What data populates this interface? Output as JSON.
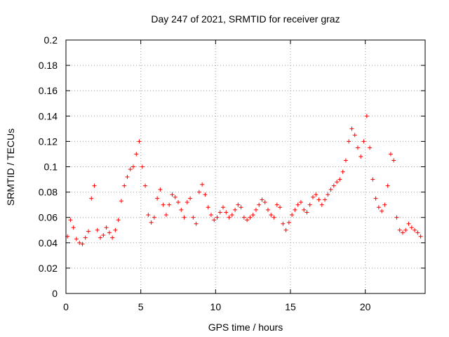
{
  "chart_data": {
    "type": "scatter",
    "title": "Day 247 of 2021, SRMTID for receiver graz",
    "xlabel": "GPS time / hours",
    "ylabel": "SRMTID / TECUs",
    "xlim": [
      0,
      24
    ],
    "ylim": [
      0,
      0.2
    ],
    "xticks": [
      0,
      5,
      10,
      15,
      20
    ],
    "xtick_labels": [
      "0",
      "5",
      "10",
      "15",
      "20"
    ],
    "yticks": [
      0,
      0.02,
      0.04,
      0.06,
      0.08,
      0.1,
      0.12,
      0.14,
      0.16,
      0.18,
      0.2
    ],
    "ytick_labels": [
      "0",
      "0.02",
      "0.04",
      "0.06",
      "0.08",
      "0.1",
      "0.12",
      "0.14",
      "0.16",
      "0.18",
      "0.2"
    ],
    "grid": true,
    "marker": "+",
    "color": "#ff0000",
    "series": [
      {
        "name": "SRMTID",
        "x": [
          0.1,
          0.3,
          0.5,
          0.7,
          0.9,
          1.1,
          1.3,
          1.5,
          1.7,
          1.9,
          2.1,
          2.3,
          2.5,
          2.7,
          2.9,
          3.1,
          3.3,
          3.5,
          3.7,
          3.9,
          4.1,
          4.3,
          4.5,
          4.7,
          4.9,
          5.1,
          5.3,
          5.5,
          5.7,
          5.9,
          6.1,
          6.3,
          6.5,
          6.7,
          6.9,
          7.1,
          7.3,
          7.5,
          7.7,
          7.9,
          8.1,
          8.3,
          8.5,
          8.7,
          8.9,
          9.1,
          9.3,
          9.5,
          9.7,
          9.9,
          10.1,
          10.3,
          10.5,
          10.7,
          10.9,
          11.1,
          11.3,
          11.5,
          11.7,
          11.9,
          12.1,
          12.3,
          12.5,
          12.7,
          12.9,
          13.1,
          13.3,
          13.5,
          13.7,
          13.9,
          14.1,
          14.3,
          14.5,
          14.7,
          14.9,
          15.1,
          15.3,
          15.5,
          15.7,
          15.9,
          16.1,
          16.3,
          16.5,
          16.7,
          16.9,
          17.1,
          17.3,
          17.5,
          17.7,
          17.9,
          18.1,
          18.3,
          18.5,
          18.7,
          18.9,
          19.1,
          19.3,
          19.5,
          19.7,
          19.9,
          20.1,
          20.3,
          20.5,
          20.7,
          20.9,
          21.1,
          21.3,
          21.5,
          21.7,
          21.9,
          22.1,
          22.3,
          22.5,
          22.7,
          22.9,
          23.1,
          23.3,
          23.5,
          23.7
        ],
        "y": [
          0.045,
          0.058,
          0.052,
          0.043,
          0.04,
          0.039,
          0.044,
          0.049,
          0.075,
          0.085,
          0.05,
          0.044,
          0.046,
          0.052,
          0.048,
          0.044,
          0.05,
          0.058,
          0.073,
          0.085,
          0.092,
          0.098,
          0.1,
          0.11,
          0.12,
          0.1,
          0.085,
          0.062,
          0.056,
          0.06,
          0.075,
          0.082,
          0.07,
          0.062,
          0.07,
          0.078,
          0.076,
          0.072,
          0.066,
          0.06,
          0.072,
          0.075,
          0.06,
          0.055,
          0.08,
          0.086,
          0.078,
          0.068,
          0.062,
          0.058,
          0.06,
          0.064,
          0.068,
          0.064,
          0.06,
          0.062,
          0.066,
          0.07,
          0.068,
          0.06,
          0.058,
          0.06,
          0.062,
          0.066,
          0.07,
          0.074,
          0.072,
          0.066,
          0.062,
          0.06,
          0.07,
          0.068,
          0.055,
          0.05,
          0.056,
          0.062,
          0.066,
          0.07,
          0.072,
          0.066,
          0.064,
          0.07,
          0.076,
          0.078,
          0.074,
          0.07,
          0.074,
          0.078,
          0.082,
          0.085,
          0.088,
          0.09,
          0.096,
          0.105,
          0.12,
          0.13,
          0.125,
          0.115,
          0.108,
          0.12,
          0.14,
          0.115,
          0.09,
          0.075,
          0.068,
          0.065,
          0.07,
          0.085,
          0.11,
          0.105,
          0.06,
          0.05,
          0.048,
          0.05,
          0.055,
          0.052,
          0.05,
          0.048,
          0.045
        ]
      }
    ]
  }
}
